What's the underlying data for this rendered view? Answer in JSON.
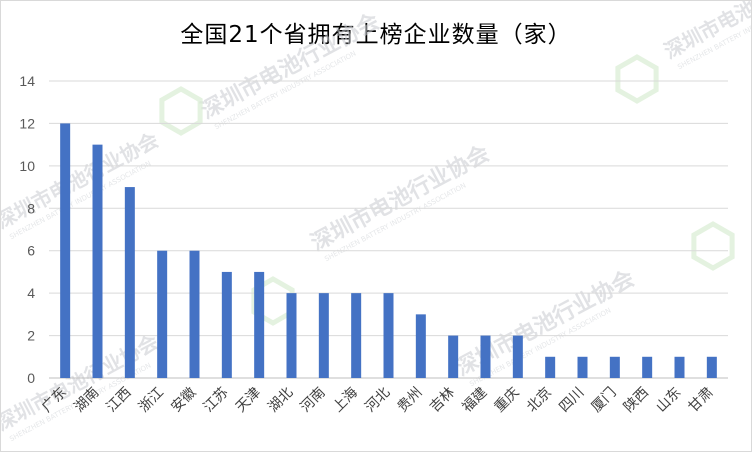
{
  "chart_data": {
    "type": "bar",
    "title": "全国21个省拥有上榜企业数量（家）",
    "categories": [
      "广东",
      "湖南",
      "江西",
      "浙江",
      "安徽",
      "江苏",
      "天津",
      "湖北",
      "河南",
      "上海",
      "河北",
      "贵州",
      "吉林",
      "福建",
      "重庆",
      "北京",
      "四川",
      "厦门",
      "陕西",
      "山东",
      "甘肃"
    ],
    "values": [
      12,
      11,
      9,
      6,
      6,
      5,
      5,
      4,
      4,
      4,
      4,
      3,
      2,
      2,
      2,
      1,
      1,
      1,
      1,
      1,
      1
    ],
    "ylim": [
      0,
      14
    ],
    "yticks": [
      0,
      2,
      4,
      6,
      8,
      10,
      12,
      14
    ],
    "grid": true,
    "legend": "none",
    "bar_color": "#4472c4"
  },
  "watermark": {
    "text": "深圳市电池行业协会",
    "subtext": "SHENZHEN BATTERY INDUSTRY ASSOCIATION",
    "color": "#c9ccd1"
  }
}
